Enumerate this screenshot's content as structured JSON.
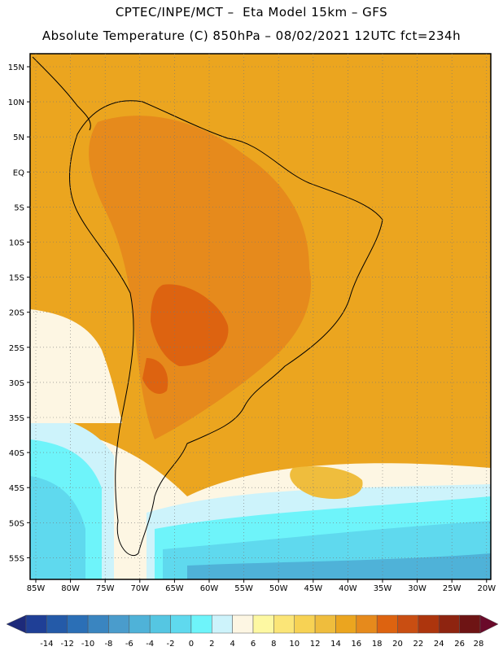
{
  "header": {
    "line1": "CPTEC/INPE/MCT –  Eta Model 15km – GFS",
    "line2": "Absolute Temperature (C) 850hPa – 08/02/2021 12UTC fct=234h"
  },
  "axes": {
    "lat_labels": [
      "15N",
      "10N",
      "5N",
      "EQ",
      "5S",
      "10S",
      "15S",
      "20S",
      "25S",
      "30S",
      "35S",
      "40S",
      "45S",
      "50S",
      "55S"
    ],
    "lon_labels": [
      "85W",
      "80W",
      "75W",
      "70W",
      "65W",
      "60W",
      "55W",
      "50W",
      "45W",
      "40W",
      "35W",
      "30W",
      "25W",
      "20W"
    ]
  },
  "colorbar": {
    "tick_labels": [
      "-14",
      "-12",
      "-10",
      "-8",
      "-6",
      "-4",
      "-2",
      "0",
      "2",
      "4",
      "6",
      "8",
      "10",
      "12",
      "14",
      "16",
      "18",
      "20",
      "22",
      "24",
      "26",
      "28"
    ],
    "colors": [
      "#1f3f96",
      "#245aa8",
      "#2b6fb6",
      "#3a85c0",
      "#4a9ccc",
      "#4fb2d8",
      "#55c6e2",
      "#5fd9ee",
      "#6ef4fa",
      "#cdf3fb",
      "#fdf6e3",
      "#fdf8a2",
      "#fbe577",
      "#f7d254",
      "#efbd3d",
      "#eba51f",
      "#e68a1c",
      "#dd6310",
      "#c94e12",
      "#ad350d",
      "#8e2410",
      "#6e1414"
    ],
    "under_color": "#1d2a7a",
    "over_color": "#6a0a2a"
  }
}
